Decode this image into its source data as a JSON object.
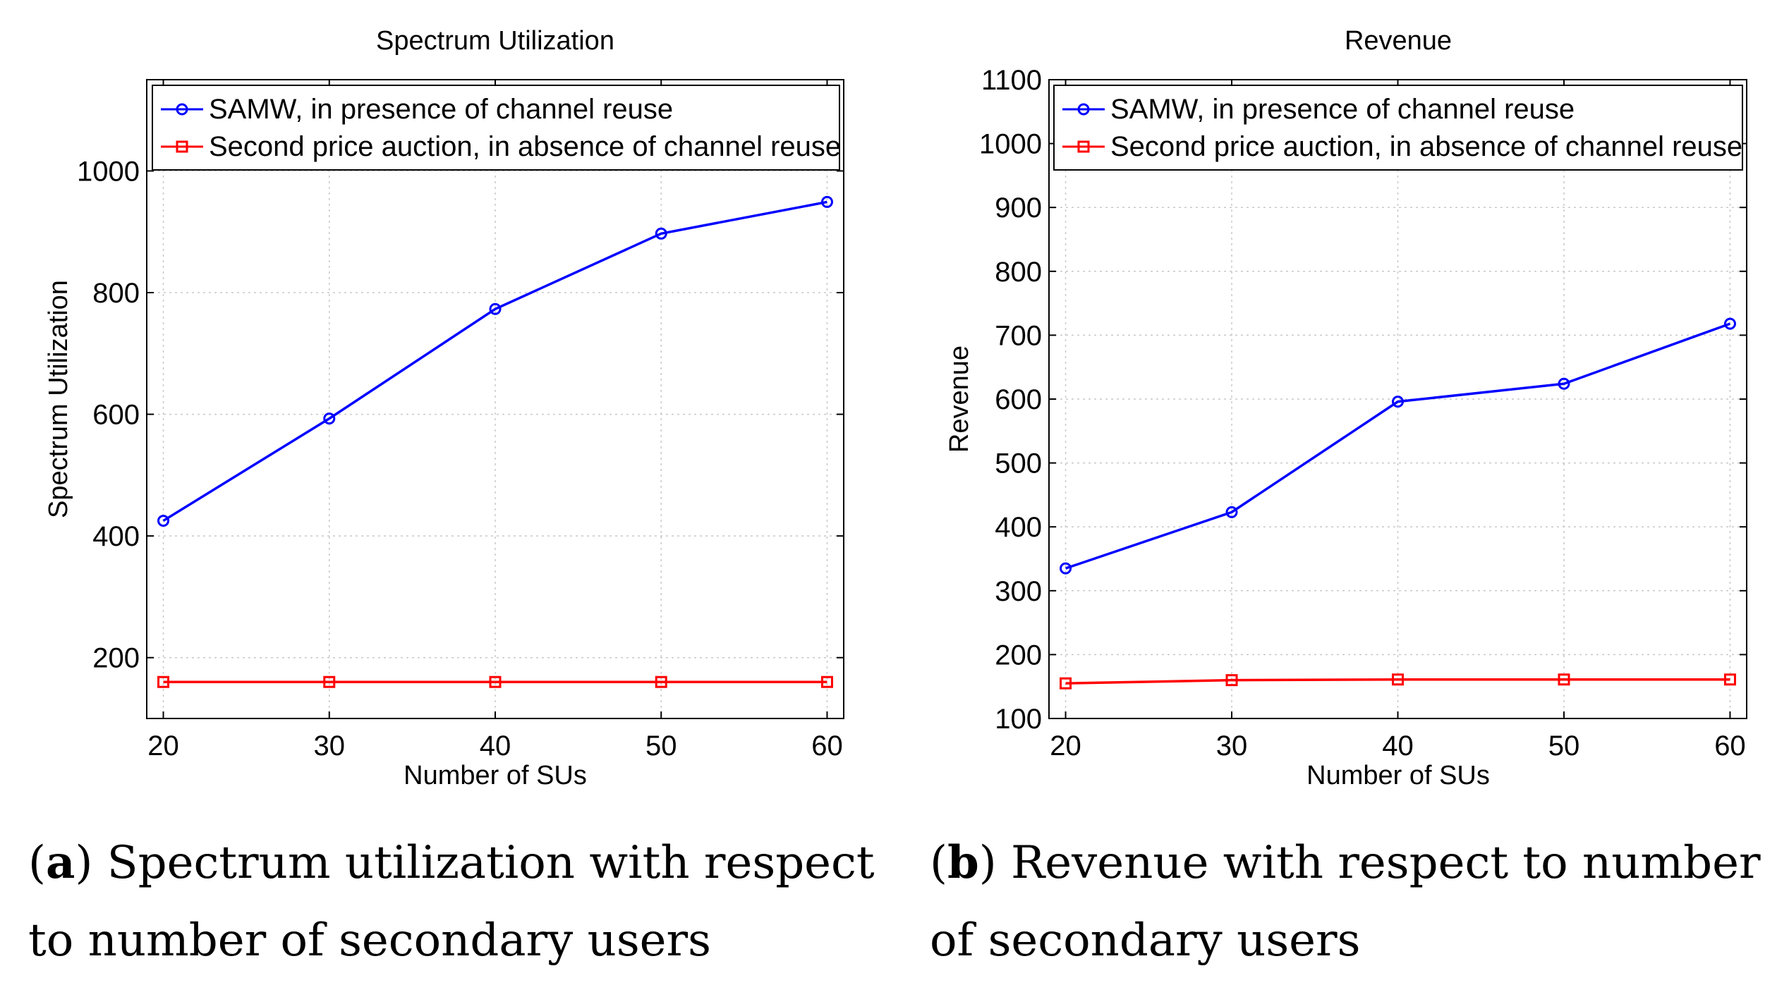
{
  "chart_data": [
    {
      "type": "line",
      "title": "Spectrum Utilization",
      "xlabel": "Number of SUs",
      "ylabel": "Spectrum Utilization",
      "x": [
        20,
        30,
        40,
        50,
        60
      ],
      "xlim": [
        19,
        61
      ],
      "ylim": [
        100,
        1150
      ],
      "xticks": [
        20,
        30,
        40,
        50,
        60
      ],
      "yticks": [
        200,
        400,
        600,
        800,
        1000
      ],
      "grid": true,
      "legend_position": "top",
      "series": [
        {
          "name": "SAMW, in presence of channel reuse",
          "color": "#0000ff",
          "marker": "circle",
          "values": [
            425,
            593,
            773,
            897,
            949
          ]
        },
        {
          "name": "Second price auction, in absence of channel reuse",
          "color": "#ff0000",
          "marker": "square",
          "values": [
            160,
            160,
            160,
            160,
            160
          ]
        }
      ],
      "caption_label": "a",
      "caption_lines": [
        ") Spectrum utilization with respect",
        "to number of secondary users"
      ]
    },
    {
      "type": "line",
      "title": "Revenue",
      "xlabel": "Number of SUs",
      "ylabel": "Revenue",
      "x": [
        20,
        30,
        40,
        50,
        60
      ],
      "xlim": [
        19,
        61
      ],
      "ylim": [
        100,
        1100
      ],
      "xticks": [
        20,
        30,
        40,
        50,
        60
      ],
      "yticks": [
        100,
        200,
        300,
        400,
        500,
        600,
        700,
        800,
        900,
        1000,
        1100
      ],
      "grid": true,
      "legend_position": "top",
      "series": [
        {
          "name": "SAMW, in presence of channel reuse",
          "color": "#0000ff",
          "marker": "circle",
          "values": [
            335,
            423,
            596,
            624,
            718
          ]
        },
        {
          "name": "Second price auction, in absence of channel reuse",
          "color": "#ff0000",
          "marker": "square",
          "values": [
            155,
            160,
            161,
            161,
            161
          ]
        }
      ],
      "caption_label": "b",
      "caption_lines": [
        ") Revenue with respect to number",
        "of secondary users"
      ]
    }
  ]
}
